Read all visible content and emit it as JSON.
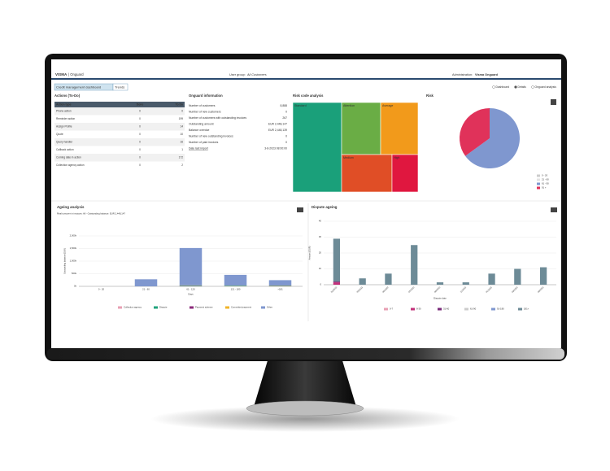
{
  "header": {
    "logo": "VISMA",
    "product": "| Onguard",
    "user_group_label": "User group:",
    "user_group": "All Customers",
    "admin_label": "Administration:",
    "admin": "Visma Onguard"
  },
  "tabs": [
    "Credit management dashboard",
    "Trends"
  ],
  "views": [
    "Dashboard",
    "Details",
    "Onguard analysis"
  ],
  "actions": {
    "title": "Actions (To-Do)",
    "columns": [
      "Action type",
      "Done",
      "To Do"
    ],
    "rows": [
      [
        "Phone action",
        "0",
        "0"
      ],
      [
        "Reminder action",
        "0",
        "199"
      ],
      [
        "Assign Profile",
        "0",
        "14"
      ],
      [
        "Quote",
        "0",
        "10"
      ],
      [
        "Query handler",
        "0",
        "16"
      ],
      [
        "Callback action",
        "0",
        "1"
      ],
      [
        "Coming date in action",
        "0",
        "172"
      ],
      [
        "Collection agency action",
        "0",
        "2"
      ]
    ]
  },
  "info": {
    "title": "Onguard information",
    "rows": [
      [
        "Number of customers",
        "8,888"
      ],
      [
        "Number of new customers",
        "0"
      ],
      [
        "Number of customers with outstanding invoices",
        "267"
      ],
      [
        "Outstanding amount",
        "EUR 2,448,147"
      ],
      [
        "Balance overdue",
        "EUR 2,448,139"
      ],
      [
        "Number of new outstanding invoices",
        "0"
      ],
      [
        "Number of paid invoices",
        "0"
      ],
      [
        "Date last import",
        "3-6-2023 08:00:00"
      ]
    ]
  },
  "risk_code": {
    "title": "Risk code analysis",
    "cells": [
      {
        "label": "Standard",
        "color": "#1aa07a"
      },
      {
        "label": "Attention",
        "color": "#6aad45"
      },
      {
        "label": "Average",
        "color": "#f29a1b"
      },
      {
        "label": "Medium",
        "color": "#e04e26"
      },
      {
        "label": "High",
        "color": "#e0173f"
      }
    ]
  },
  "risk": {
    "title": "Risk",
    "type": "pie",
    "values": [
      65,
      35
    ],
    "colors": [
      "#7f97cf",
      "#e0325a"
    ],
    "legend": [
      {
        "name": "0 - 20",
        "color": "#cccccc"
      },
      {
        "name": "21 - 60",
        "color": "#e3e3e3"
      },
      {
        "name": "61 - 90",
        "color": "#7f97cf"
      },
      {
        "name": "91 +",
        "color": "#e0325a"
      }
    ]
  },
  "chart_data": [
    {
      "type": "bar",
      "stacked": true,
      "title": "Ageing analysis",
      "subtitle": "Real turnover in invoices: All - Outstanding balance: EUR 2,448,147",
      "categories": [
        "0 - 20",
        "21 - 60",
        "61 - 120",
        "121 - 180",
        ">181"
      ],
      "series": [
        {
          "name": "Collection agency",
          "color": "#e8a0b4",
          "values": [
            0,
            0,
            0,
            0,
            0
          ]
        },
        {
          "name": "Dispute",
          "color": "#21a37c",
          "values": [
            0,
            0,
            20000,
            15000,
            15000
          ]
        },
        {
          "name": "Payment scheme",
          "color": "#8b2a7a",
          "values": [
            0,
            0,
            10000,
            0,
            10000
          ]
        },
        {
          "name": "Committed payment",
          "color": "#f0b429",
          "values": [
            0,
            0,
            10000,
            10000,
            10000
          ]
        },
        {
          "name": "Other",
          "color": "#7f97cf",
          "values": [
            0,
            280000,
            1480000,
            430000,
            210000
          ]
        }
      ],
      "ylim": [
        0,
        2000000
      ],
      "yticks": [
        {
          "value": 0,
          "label": "0k"
        },
        {
          "value": 500000,
          "label": "500k"
        },
        {
          "value": 1000000,
          "label": "1,000k"
        },
        {
          "value": 1500000,
          "label": "1,500k"
        },
        {
          "value": 2000000,
          "label": "2,000k"
        }
      ],
      "xlabel": "Days",
      "ylabel": "Outstanding balance (EUR)",
      "grid": true
    },
    {
      "type": "bar",
      "stacked": true,
      "title": "Dispute ageing",
      "categories": [
        "01/2022",
        "03/2022",
        "05/2022",
        "07/2022",
        "09/2022",
        "11/2022",
        "01/2023",
        "03/2023",
        "05/2023"
      ],
      "series": [
        {
          "name": "0-7",
          "color": "#e8a0b4",
          "values": [
            0,
            0,
            0,
            0,
            0,
            0,
            0,
            0,
            0
          ]
        },
        {
          "name": "8-30",
          "color": "#c2307a",
          "values": [
            1.5,
            0,
            0,
            0,
            0,
            0,
            0,
            0,
            0
          ]
        },
        {
          "name": "31-60",
          "color": "#7a2a7a",
          "values": [
            0.5,
            0,
            0,
            0,
            0,
            0,
            0,
            0,
            0
          ]
        },
        {
          "name": "61-90",
          "color": "#cccccc",
          "values": [
            0,
            0,
            0,
            0,
            0,
            0,
            0,
            0,
            0
          ]
        },
        {
          "name": "91-180",
          "color": "#7f97cf",
          "values": [
            0,
            0,
            0,
            0,
            0,
            0,
            0,
            0,
            0
          ]
        },
        {
          "name": "181+",
          "color": "#6d8b97",
          "values": [
            27,
            4,
            7,
            25,
            1.5,
            1.5,
            7,
            10,
            11
          ]
        }
      ],
      "ylim": [
        0,
        40
      ],
      "yticks": [
        0,
        10,
        20,
        30,
        40
      ],
      "xlabel": "Dispute date",
      "ylabel": "Amount (EUR)",
      "grid": true
    }
  ]
}
